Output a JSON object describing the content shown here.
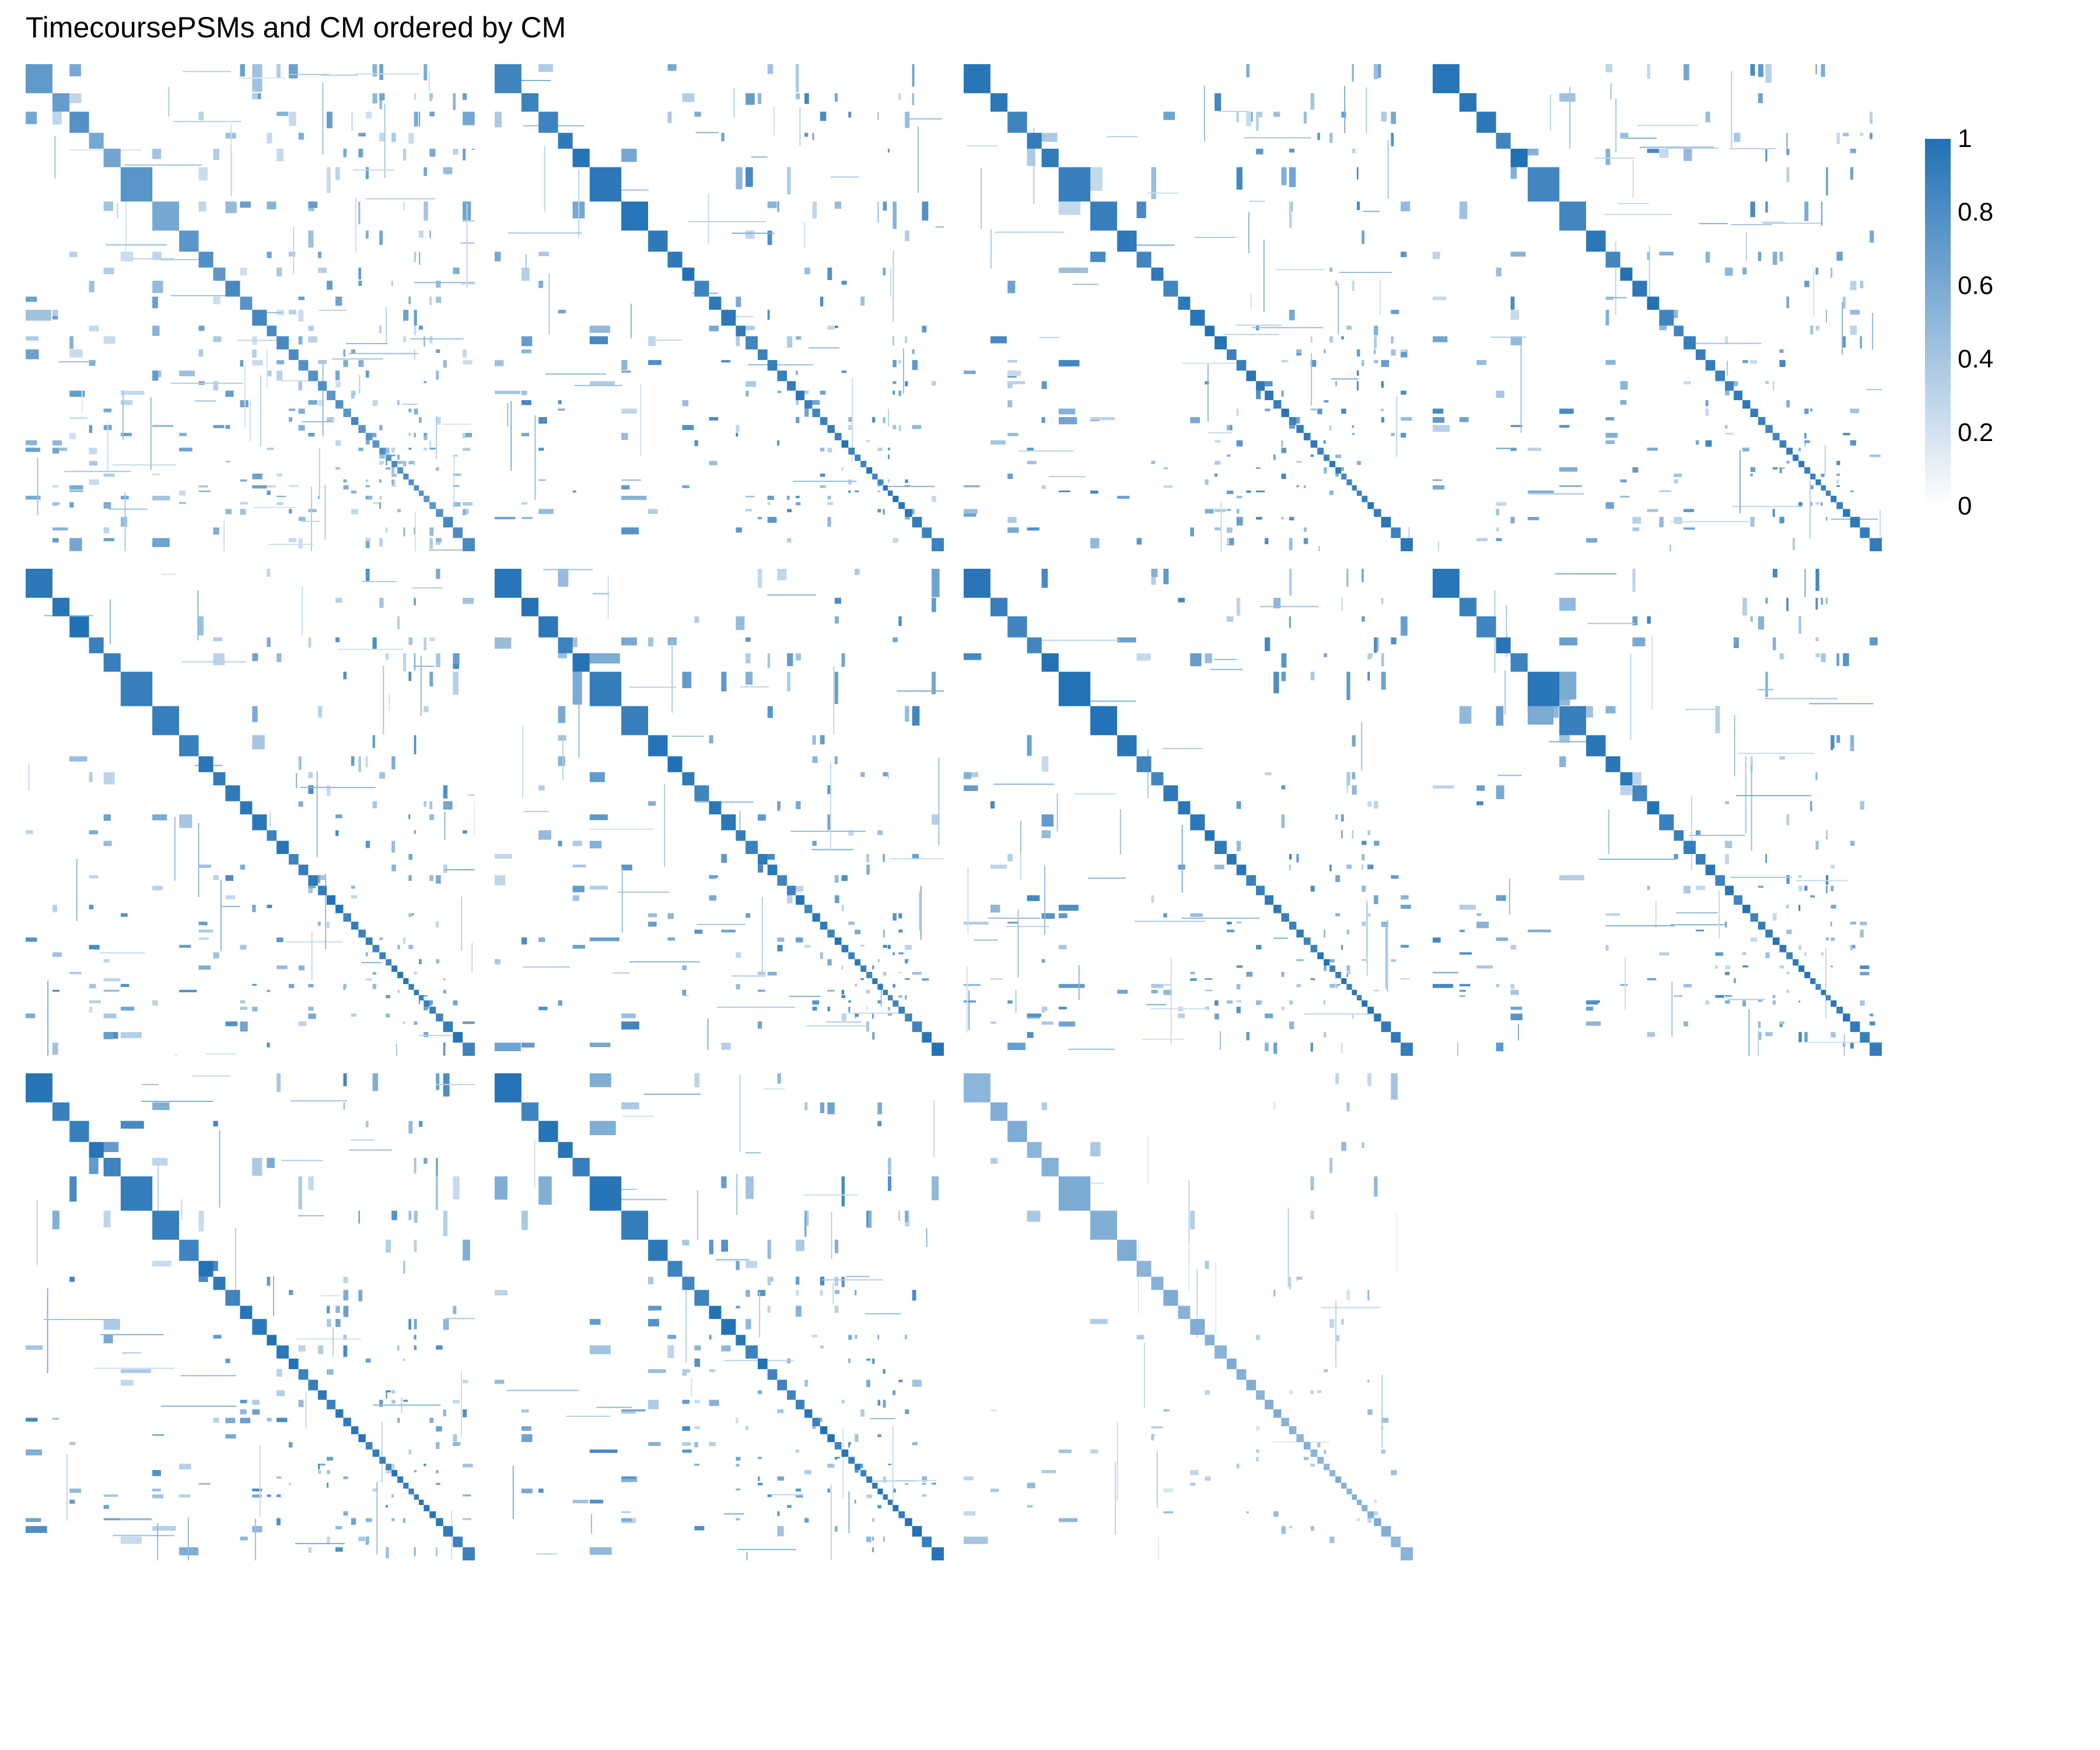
{
  "title": "TimecoursePSMs and CM ordered by CM",
  "colors": {
    "high": "#2171b5",
    "low": "#ffffff",
    "background": "#ffffff"
  },
  "chart_data": {
    "type": "heatmap",
    "title": "TimecoursePSMs and CM ordered by CM",
    "panel_count": 11,
    "layout": {
      "rows": 3,
      "cols": 4
    },
    "xlabel": "",
    "ylabel": "",
    "grid": false,
    "legend": {
      "placement": "right",
      "type": "colorbar",
      "range": [
        0,
        1
      ],
      "ticks": [
        {
          "label": "1",
          "value": 1
        },
        {
          "label": "0.8",
          "value": 0.8
        },
        {
          "label": "0.6",
          "value": 0.6
        },
        {
          "label": "0.4",
          "value": 0.4
        },
        {
          "label": "0.2",
          "value": 0.2
        },
        {
          "label": "0",
          "value": 0
        }
      ]
    },
    "cluster_blocks": [
      0.055,
      0.035,
      0.04,
      0.03,
      0.035,
      0.065,
      0.055,
      0.04,
      0.03,
      0.025,
      0.03,
      0.025,
      0.03,
      0.02,
      0.025,
      0.02,
      0.02,
      0.02,
      0.018,
      0.018,
      0.016,
      0.016,
      0.015,
      0.015,
      0.014,
      0.014,
      0.013,
      0.012,
      0.012,
      0.012,
      0.011,
      0.011,
      0.01,
      0.01,
      0.012,
      0.013,
      0.015,
      0.02,
      0.02,
      0.025
    ],
    "panels": [
      {
        "id": 1,
        "row": 1,
        "col": 1,
        "diag_intensity": 0.85,
        "offdiag_density": 1.8
      },
      {
        "id": 2,
        "row": 1,
        "col": 2,
        "diag_intensity": 1.0,
        "offdiag_density": 1.0
      },
      {
        "id": 3,
        "row": 1,
        "col": 3,
        "diag_intensity": 1.0,
        "offdiag_density": 1.0
      },
      {
        "id": 4,
        "row": 1,
        "col": 4,
        "diag_intensity": 1.0,
        "offdiag_density": 1.0
      },
      {
        "id": 5,
        "row": 2,
        "col": 1,
        "diag_intensity": 1.0,
        "offdiag_density": 1.0
      },
      {
        "id": 6,
        "row": 2,
        "col": 2,
        "diag_intensity": 1.0,
        "offdiag_density": 1.0
      },
      {
        "id": 7,
        "row": 2,
        "col": 3,
        "diag_intensity": 1.0,
        "offdiag_density": 1.0
      },
      {
        "id": 8,
        "row": 2,
        "col": 4,
        "diag_intensity": 1.0,
        "offdiag_density": 1.0
      },
      {
        "id": 9,
        "row": 3,
        "col": 1,
        "diag_intensity": 1.0,
        "offdiag_density": 1.0
      },
      {
        "id": 10,
        "row": 3,
        "col": 2,
        "diag_intensity": 1.0,
        "offdiag_density": 1.0
      },
      {
        "id": 11,
        "row": 3,
        "col": 3,
        "diag_intensity": 0.6,
        "offdiag_density": 0.45
      }
    ]
  }
}
